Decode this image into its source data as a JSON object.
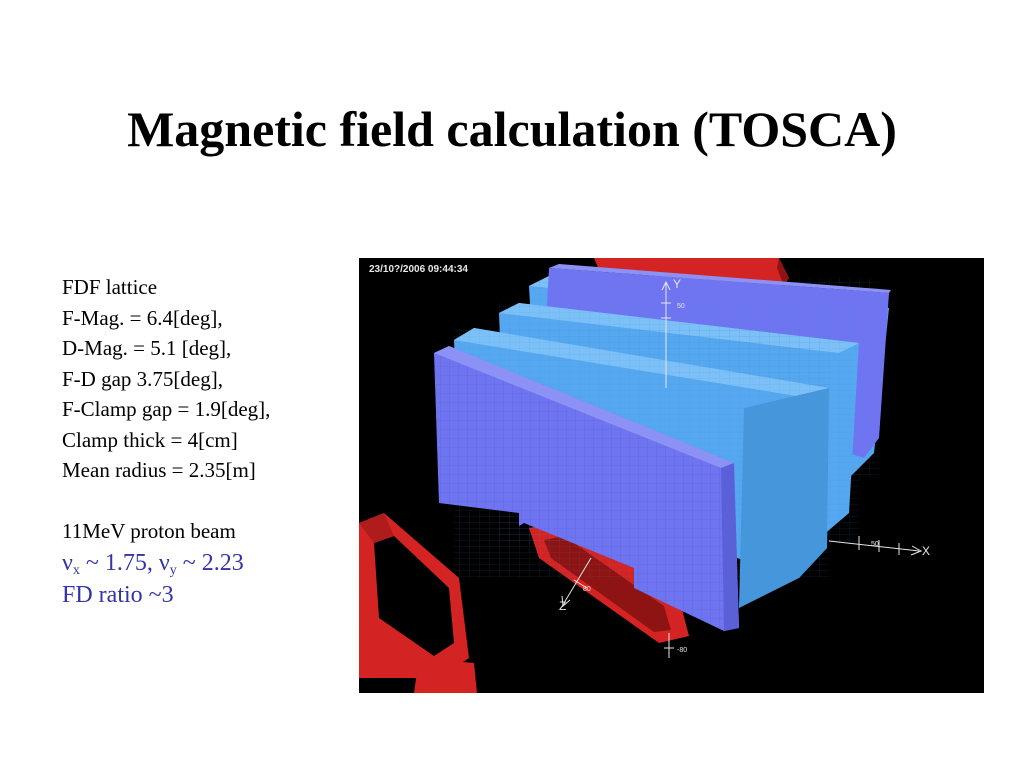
{
  "title": "Magnetic field calculation (TOSCA)",
  "params": {
    "lines": [
      "FDF lattice",
      "F-Mag. = 6.4[deg],",
      "D-Mag. = 5.1 [deg],",
      "F-D gap 3.75[deg],",
      "F-Clamp gap = 1.9[deg],",
      "Clamp thick = 4[cm]",
      "Mean radius = 2.35[m]"
    ],
    "beam": "11MeV proton beam",
    "tune": {
      "nu": "ν",
      "x_sub": "x",
      "x_value": " ~ 1.75, ",
      "y_sub": "y",
      "y_value": " ~ 2.23"
    },
    "fd_ratio": "FD ratio ~3",
    "highlight_color": "#3333aa"
  },
  "simulation": {
    "timestamp": "23/10?/2006 09:44:34",
    "axes": {
      "x": "X",
      "y": "Y",
      "z": "Z"
    },
    "tick_labels": {
      "y_axis": "50",
      "x_axis": "50",
      "z_axis_a": "80",
      "z_axis_b": "-80"
    },
    "colors": {
      "f_magnet_face": "#6f75f0",
      "f_magnet_top": "#8c92f5",
      "d_magnet_face": "#55a8f0",
      "d_magnet_top": "#7cc0f7",
      "clamp": "#d42323",
      "clamp_dark": "#8e1414",
      "background": "#000000"
    }
  }
}
